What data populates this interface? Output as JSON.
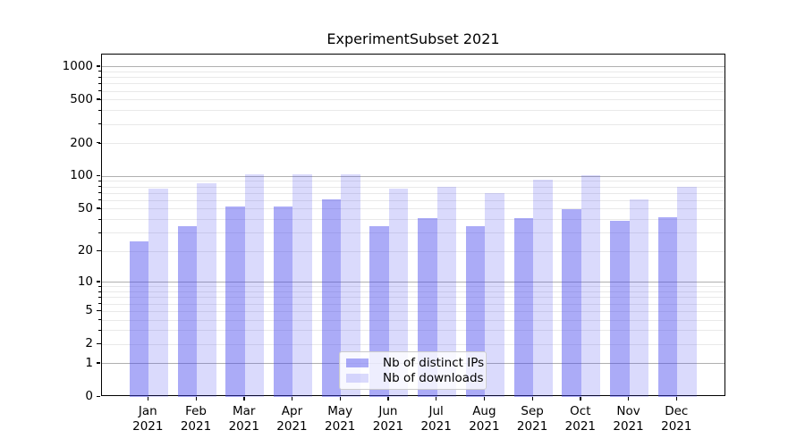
{
  "chart_data": {
    "type": "bar",
    "title": "ExperimentSubset 2021",
    "categories": [
      "Jan",
      "Feb",
      "Mar",
      "Apr",
      "May",
      "Jun",
      "Jul",
      "Aug",
      "Sep",
      "Oct",
      "Nov",
      "Dec"
    ],
    "xtick_year": "2021",
    "series": [
      {
        "name": "Nb of distinct IPs",
        "color": "rgba(68,68,238,0.45)",
        "color_on_white": "#aaaaf2",
        "values": [
          25,
          35,
          53,
          53,
          62,
          35,
          41,
          35,
          41,
          50,
          39,
          42
        ]
      },
      {
        "name": "Nb of downloads",
        "color": "rgba(68,68,238,0.2)",
        "color_on_white": "#d9d9f8",
        "values": [
          77,
          87,
          105,
          105,
          105,
          78,
          81,
          70,
          93,
          102,
          61,
          81
        ]
      }
    ],
    "xlabel": "",
    "ylabel": "",
    "yscale": "log1p",
    "ylim": [
      0,
      1300
    ],
    "yticks": {
      "values": [
        0,
        1,
        2,
        5,
        10,
        20,
        50,
        100,
        200,
        500,
        1000
      ],
      "labels": [
        "0",
        "1",
        "2",
        "5",
        "10",
        "20",
        "50",
        "100",
        "200",
        "500",
        "1000"
      ]
    },
    "major_grid_values": [
      1,
      10,
      100,
      1000
    ],
    "minor_grid_values": [
      2,
      3,
      4,
      5,
      6,
      7,
      8,
      9,
      20,
      30,
      40,
      50,
      60,
      70,
      80,
      90,
      200,
      300,
      400,
      500,
      600,
      700,
      800,
      900
    ],
    "grid": true,
    "legend_position": "lower center",
    "colors": {
      "axis": "#000000",
      "major_grid": "#b0b0b0",
      "minor_grid": "#e9e9e9",
      "background": "#ffffff"
    }
  }
}
